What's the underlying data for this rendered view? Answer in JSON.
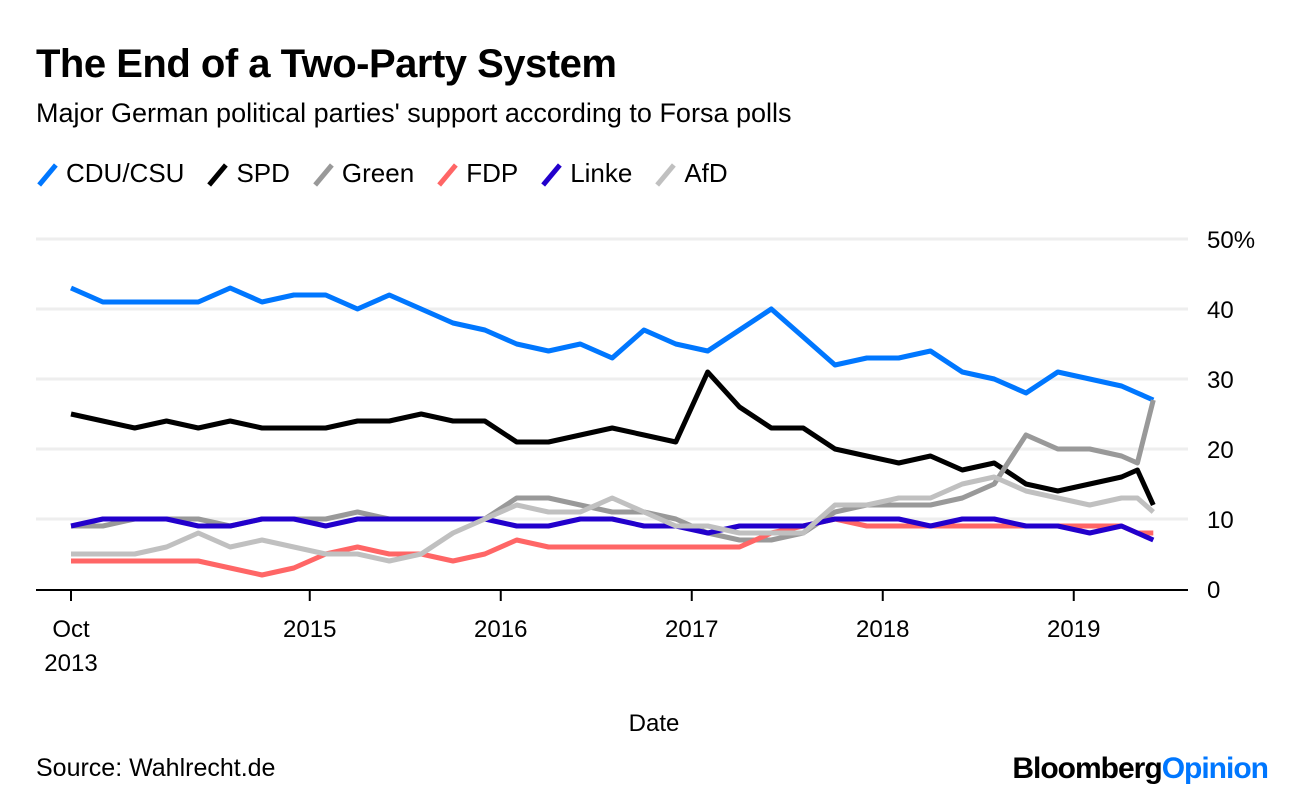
{
  "chart_data": {
    "type": "line",
    "title": "The End of a Two-Party System",
    "subtitle": "Major German political parties' support according to Forsa polls",
    "xlabel": "Date",
    "ylabel": "",
    "ylim": [
      0,
      50
    ],
    "yticks": [
      "0",
      "10",
      "20",
      "30",
      "40",
      "50%"
    ],
    "ytick_values": [
      0,
      10,
      20,
      30,
      40,
      50
    ],
    "xticks": [
      {
        "date": "2013-10",
        "label": "Oct",
        "label2": "2013"
      },
      {
        "date": "2015-01",
        "label": "2015"
      },
      {
        "date": "2016-01",
        "label": "2016"
      },
      {
        "date": "2017-01",
        "label": "2017"
      },
      {
        "date": "2018-01",
        "label": "2018"
      },
      {
        "date": "2019-01",
        "label": "2019"
      }
    ],
    "grid": true,
    "legend_position": "top-left",
    "x": [
      "2013-10",
      "2013-12",
      "2014-02",
      "2014-04",
      "2014-06",
      "2014-08",
      "2014-10",
      "2014-12",
      "2015-02",
      "2015-04",
      "2015-06",
      "2015-08",
      "2015-10",
      "2015-12",
      "2016-02",
      "2016-04",
      "2016-06",
      "2016-08",
      "2016-10",
      "2016-12",
      "2017-02",
      "2017-04",
      "2017-06",
      "2017-08",
      "2017-10",
      "2017-12",
      "2018-02",
      "2018-04",
      "2018-06",
      "2018-08",
      "2018-10",
      "2018-12",
      "2019-02",
      "2019-04",
      "2019-05",
      "2019-06"
    ],
    "series": [
      {
        "name": "CDU/CSU",
        "color": "#0077ff",
        "values": [
          43,
          41,
          41,
          41,
          41,
          43,
          41,
          42,
          42,
          40,
          42,
          40,
          38,
          37,
          35,
          34,
          35,
          33,
          37,
          35,
          34,
          37,
          40,
          36,
          32,
          33,
          33,
          34,
          31,
          30,
          28,
          31,
          30,
          29,
          28,
          27
        ]
      },
      {
        "name": "SPD",
        "color": "#000000",
        "values": [
          25,
          24,
          23,
          24,
          23,
          24,
          23,
          23,
          23,
          24,
          24,
          25,
          24,
          24,
          21,
          21,
          22,
          23,
          22,
          21,
          31,
          26,
          23,
          23,
          20,
          19,
          18,
          19,
          17,
          18,
          15,
          14,
          15,
          16,
          17,
          12
        ]
      },
      {
        "name": "Green",
        "color": "#999999",
        "values": [
          9,
          9,
          10,
          10,
          10,
          9,
          10,
          10,
          10,
          11,
          10,
          10,
          10,
          10,
          13,
          13,
          12,
          11,
          11,
          10,
          8,
          7,
          7,
          8,
          11,
          12,
          12,
          12,
          13,
          15,
          22,
          20,
          20,
          19,
          18,
          27
        ]
      },
      {
        "name": "FDP",
        "color": "#ff6666",
        "values": [
          4,
          4,
          4,
          4,
          4,
          3,
          2,
          3,
          5,
          6,
          5,
          5,
          4,
          5,
          7,
          6,
          6,
          6,
          6,
          6,
          6,
          6,
          8,
          9,
          10,
          9,
          9,
          9,
          9,
          9,
          9,
          9,
          9,
          9,
          8,
          8
        ]
      },
      {
        "name": "Linke",
        "color": "#2200cc",
        "values": [
          9,
          10,
          10,
          10,
          9,
          9,
          10,
          10,
          9,
          10,
          10,
          10,
          10,
          10,
          9,
          9,
          10,
          10,
          9,
          9,
          8,
          9,
          9,
          9,
          10,
          10,
          10,
          9,
          10,
          10,
          9,
          9,
          8,
          9,
          8,
          7
        ]
      },
      {
        "name": "AfD",
        "color": "#c0c0c0",
        "values": [
          5,
          5,
          5,
          6,
          8,
          6,
          7,
          6,
          5,
          5,
          4,
          5,
          8,
          10,
          12,
          11,
          11,
          13,
          11,
          9,
          9,
          8,
          8,
          8,
          12,
          12,
          13,
          13,
          15,
          16,
          14,
          13,
          12,
          13,
          13,
          11
        ]
      }
    ]
  },
  "source": "Source: Wahlrecht.de",
  "logo": {
    "part1": "Bloomberg",
    "part2": "Opinion",
    "color2": "#0077ff"
  }
}
